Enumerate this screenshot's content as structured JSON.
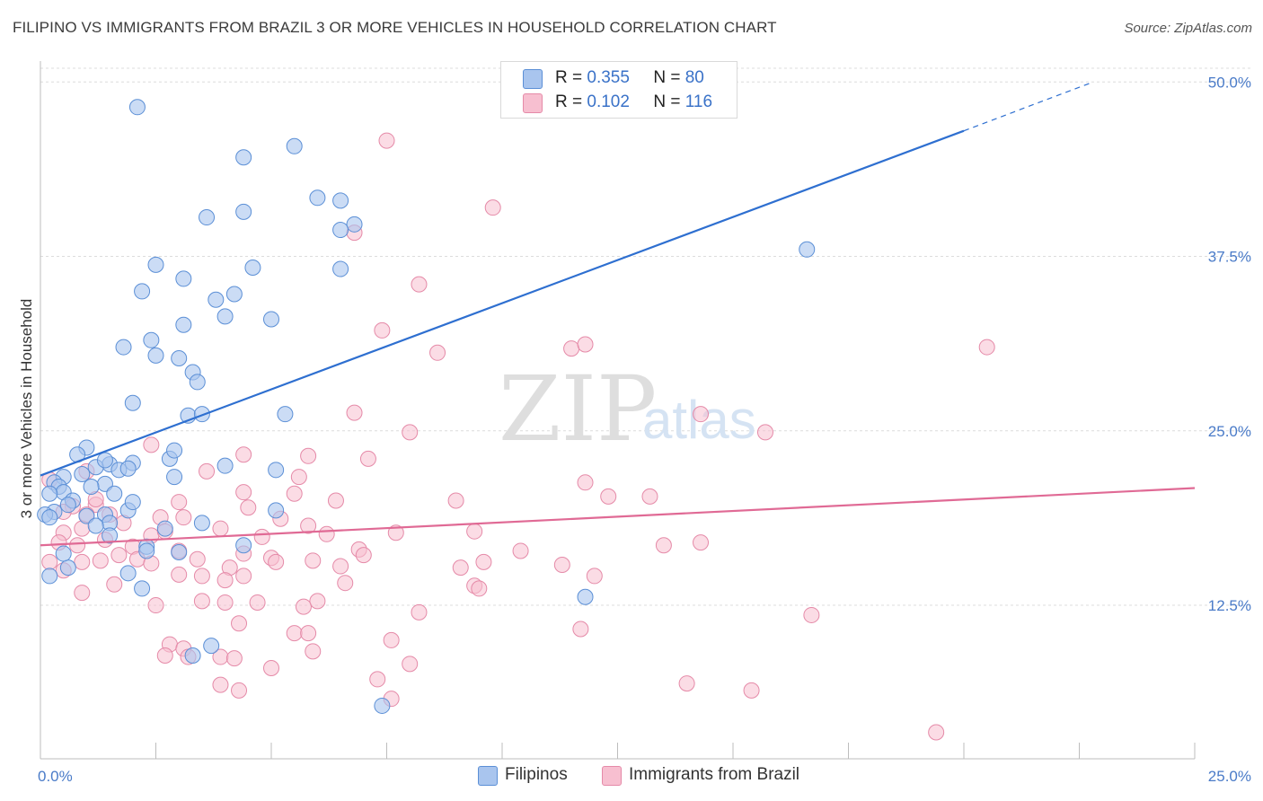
{
  "header": {
    "title": "FILIPINO VS IMMIGRANTS FROM BRAZIL 3 OR MORE VEHICLES IN HOUSEHOLD CORRELATION CHART",
    "source": "Source: ZipAtlas.com"
  },
  "legend": {
    "rows": [
      {
        "r_label": "R =",
        "r_value": "0.355",
        "n_label": "N =",
        "n_value": "80"
      },
      {
        "r_label": "R =",
        "r_value": "0.102",
        "n_label": "N =",
        "n_value": "116"
      }
    ]
  },
  "bottom_legend": {
    "filipinos": "Filipinos",
    "brazil": "Immigrants from Brazil"
  },
  "watermark": {
    "zip": "ZIP",
    "atlas": "atlas"
  },
  "colors": {
    "blue_fill": "#a9c5ee",
    "blue_stroke": "#5b8fd6",
    "blue_line": "#2e6fd0",
    "pink_fill": "#f7bfd0",
    "pink_stroke": "#e58aa8",
    "pink_line": "#e06a95",
    "tick_text": "#4a7bc8",
    "grid": "#dcdcdc"
  },
  "chart_data": {
    "type": "scatter",
    "title": "FILIPINO VS IMMIGRANTS FROM BRAZIL 3 OR MORE VEHICLES IN HOUSEHOLD CORRELATION CHART",
    "xlabel": "",
    "ylabel": "3 or more Vehicles in Household",
    "xlim": [
      0,
      25
    ],
    "ylim": [
      1.5,
      51.5
    ],
    "x_ticks": [
      0,
      2.5,
      5,
      7.5,
      10,
      12.5,
      15,
      17.5,
      20,
      22.5,
      25
    ],
    "x_tick_labels": [
      {
        "value": 0,
        "label": "0.0%"
      },
      {
        "value": 25,
        "label": "25.0%"
      }
    ],
    "y_ticks": [
      {
        "value": 12.5,
        "label": "12.5%"
      },
      {
        "value": 25.0,
        "label": "25.0%"
      },
      {
        "value": 37.5,
        "label": "37.5%"
      },
      {
        "value": 50.0,
        "label": "50.0%"
      }
    ],
    "grid": true,
    "legend_position": "top-center",
    "series": [
      {
        "name": "Filipinos",
        "r": 0.355,
        "n": 80,
        "trend": {
          "x0": 0,
          "y0": 21.8,
          "x1": 20,
          "y1": 46.5,
          "dash_to_x": 22.8,
          "dash_to_y": 50.0
        },
        "points": [
          [
            2.1,
            48.2
          ],
          [
            4.4,
            44.6
          ],
          [
            5.5,
            45.4
          ],
          [
            3.6,
            40.3
          ],
          [
            4.4,
            40.7
          ],
          [
            6.0,
            41.7
          ],
          [
            6.5,
            41.5
          ],
          [
            6.8,
            39.8
          ],
          [
            6.5,
            39.4
          ],
          [
            2.5,
            36.9
          ],
          [
            4.6,
            36.7
          ],
          [
            6.5,
            36.6
          ],
          [
            3.1,
            35.9
          ],
          [
            2.2,
            35.0
          ],
          [
            3.8,
            34.4
          ],
          [
            4.2,
            34.8
          ],
          [
            4.0,
            33.2
          ],
          [
            3.1,
            32.6
          ],
          [
            5.0,
            33.0
          ],
          [
            1.8,
            31.0
          ],
          [
            2.4,
            31.5
          ],
          [
            2.5,
            30.4
          ],
          [
            3.0,
            30.2
          ],
          [
            3.3,
            29.2
          ],
          [
            3.4,
            28.5
          ],
          [
            2.0,
            27.0
          ],
          [
            3.2,
            26.1
          ],
          [
            3.5,
            26.2
          ],
          [
            5.3,
            26.2
          ],
          [
            1.0,
            23.8
          ],
          [
            0.8,
            23.3
          ],
          [
            1.5,
            22.6
          ],
          [
            1.7,
            22.2
          ],
          [
            2.0,
            22.7
          ],
          [
            1.9,
            22.3
          ],
          [
            1.2,
            22.4
          ],
          [
            2.8,
            23.0
          ],
          [
            2.9,
            23.6
          ],
          [
            0.9,
            21.9
          ],
          [
            0.5,
            21.7
          ],
          [
            0.3,
            21.3
          ],
          [
            0.4,
            21.0
          ],
          [
            1.4,
            21.2
          ],
          [
            0.5,
            20.6
          ],
          [
            1.1,
            21.0
          ],
          [
            0.2,
            20.5
          ],
          [
            1.6,
            20.5
          ],
          [
            0.7,
            20.0
          ],
          [
            0.6,
            19.7
          ],
          [
            0.3,
            19.2
          ],
          [
            0.1,
            19.0
          ],
          [
            1.0,
            18.9
          ],
          [
            1.4,
            19.0
          ],
          [
            1.9,
            19.3
          ],
          [
            0.2,
            18.8
          ],
          [
            1.5,
            18.4
          ],
          [
            2.7,
            18.0
          ],
          [
            3.5,
            18.4
          ],
          [
            1.5,
            17.5
          ],
          [
            4.4,
            16.8
          ],
          [
            2.3,
            16.7
          ],
          [
            3.0,
            16.3
          ],
          [
            2.3,
            16.4
          ],
          [
            2.9,
            21.7
          ],
          [
            5.1,
            19.3
          ],
          [
            5.1,
            22.2
          ],
          [
            0.6,
            15.2
          ],
          [
            0.2,
            14.6
          ],
          [
            1.9,
            14.8
          ],
          [
            2.2,
            13.7
          ],
          [
            11.8,
            13.1
          ],
          [
            3.7,
            9.6
          ],
          [
            3.3,
            8.9
          ],
          [
            7.4,
            5.3
          ],
          [
            16.6,
            38.0
          ],
          [
            1.4,
            22.9
          ],
          [
            4.0,
            22.5
          ],
          [
            0.5,
            16.2
          ],
          [
            1.2,
            18.2
          ],
          [
            2.0,
            19.9
          ]
        ]
      },
      {
        "name": "Immigrants from Brazil",
        "r": 0.102,
        "n": 116,
        "trend": {
          "x0": 0,
          "y0": 16.8,
          "x1": 25,
          "y1": 20.9
        },
        "points": [
          [
            7.5,
            45.8
          ],
          [
            9.8,
            41.0
          ],
          [
            6.8,
            39.2
          ],
          [
            8.2,
            35.5
          ],
          [
            7.4,
            32.2
          ],
          [
            8.6,
            30.6
          ],
          [
            11.5,
            30.9
          ],
          [
            11.8,
            31.2
          ],
          [
            20.5,
            31.0
          ],
          [
            6.8,
            26.3
          ],
          [
            14.3,
            26.2
          ],
          [
            15.7,
            24.9
          ],
          [
            8.0,
            24.9
          ],
          [
            2.4,
            24.0
          ],
          [
            4.4,
            23.3
          ],
          [
            5.8,
            23.2
          ],
          [
            7.1,
            23.0
          ],
          [
            3.6,
            22.1
          ],
          [
            5.6,
            21.7
          ],
          [
            11.8,
            21.3
          ],
          [
            12.3,
            20.3
          ],
          [
            13.2,
            20.3
          ],
          [
            4.4,
            20.6
          ],
          [
            5.5,
            20.5
          ],
          [
            6.4,
            20.0
          ],
          [
            9.0,
            20.0
          ],
          [
            3.0,
            19.9
          ],
          [
            4.5,
            19.5
          ],
          [
            0.7,
            19.6
          ],
          [
            1.2,
            19.7
          ],
          [
            0.5,
            19.2
          ],
          [
            1.0,
            19.0
          ],
          [
            1.5,
            19.0
          ],
          [
            2.6,
            18.8
          ],
          [
            3.1,
            18.8
          ],
          [
            5.2,
            18.7
          ],
          [
            5.8,
            18.2
          ],
          [
            3.9,
            18.0
          ],
          [
            1.8,
            18.4
          ],
          [
            0.9,
            18.0
          ],
          [
            2.4,
            17.5
          ],
          [
            0.5,
            17.7
          ],
          [
            2.7,
            17.8
          ],
          [
            4.8,
            17.4
          ],
          [
            6.2,
            17.6
          ],
          [
            7.7,
            17.7
          ],
          [
            1.4,
            17.2
          ],
          [
            0.4,
            17.0
          ],
          [
            0.8,
            16.8
          ],
          [
            2.0,
            16.7
          ],
          [
            3.0,
            16.4
          ],
          [
            4.4,
            16.2
          ],
          [
            6.9,
            16.5
          ],
          [
            7.0,
            16.1
          ],
          [
            10.4,
            16.4
          ],
          [
            13.5,
            16.8
          ],
          [
            1.7,
            16.1
          ],
          [
            2.1,
            15.8
          ],
          [
            2.4,
            15.5
          ],
          [
            0.9,
            15.6
          ],
          [
            1.3,
            15.7
          ],
          [
            5.0,
            15.9
          ],
          [
            5.1,
            15.6
          ],
          [
            5.9,
            15.7
          ],
          [
            6.5,
            15.3
          ],
          [
            9.6,
            15.6
          ],
          [
            0.5,
            15.0
          ],
          [
            3.4,
            15.8
          ],
          [
            4.1,
            15.2
          ],
          [
            3.0,
            14.7
          ],
          [
            3.5,
            14.6
          ],
          [
            4.0,
            14.3
          ],
          [
            4.4,
            14.6
          ],
          [
            1.6,
            14.0
          ],
          [
            6.6,
            14.1
          ],
          [
            9.4,
            13.9
          ],
          [
            9.5,
            13.7
          ],
          [
            0.9,
            13.4
          ],
          [
            3.5,
            12.8
          ],
          [
            4.0,
            12.7
          ],
          [
            4.7,
            12.7
          ],
          [
            6.0,
            12.8
          ],
          [
            5.7,
            12.4
          ],
          [
            2.5,
            12.5
          ],
          [
            8.2,
            12.0
          ],
          [
            16.7,
            11.8
          ],
          [
            4.3,
            11.2
          ],
          [
            11.7,
            10.8
          ],
          [
            5.5,
            10.5
          ],
          [
            5.8,
            10.5
          ],
          [
            7.6,
            10.0
          ],
          [
            2.8,
            9.7
          ],
          [
            3.1,
            9.4
          ],
          [
            5.9,
            9.2
          ],
          [
            3.2,
            8.8
          ],
          [
            2.7,
            8.9
          ],
          [
            3.9,
            8.8
          ],
          [
            4.2,
            8.7
          ],
          [
            8.0,
            8.3
          ],
          [
            5.0,
            8.0
          ],
          [
            7.3,
            7.2
          ],
          [
            3.9,
            6.8
          ],
          [
            4.3,
            6.4
          ],
          [
            7.6,
            5.8
          ],
          [
            14.0,
            6.9
          ],
          [
            15.4,
            6.4
          ],
          [
            19.4,
            3.4
          ],
          [
            9.1,
            15.2
          ],
          [
            11.3,
            15.4
          ],
          [
            12.0,
            14.6
          ],
          [
            1.0,
            22.1
          ],
          [
            14.3,
            17.0
          ],
          [
            0.2,
            21.5
          ],
          [
            0.2,
            15.6
          ],
          [
            1.2,
            20.1
          ],
          [
            9.4,
            17.8
          ]
        ]
      }
    ]
  }
}
